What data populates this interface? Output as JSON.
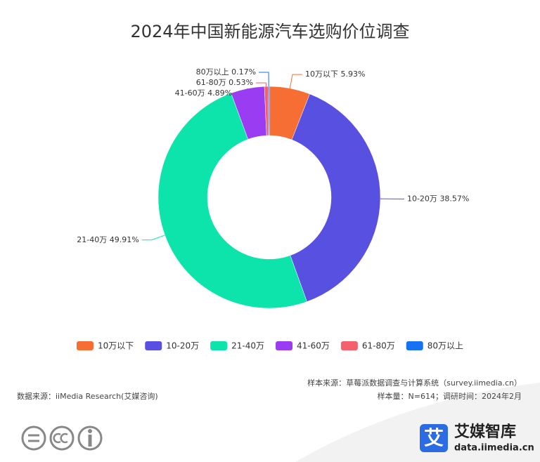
{
  "chart_data": {
    "type": "pie",
    "title": "2024年中国新能源汽车选购价位调查",
    "categories": [
      "10万以下",
      "10-20万",
      "21-40万",
      "41-60万",
      "61-80万",
      "80万以上"
    ],
    "values": [
      5.93,
      38.57,
      49.91,
      4.89,
      0.53,
      0.17
    ],
    "value_labels": [
      "5.93%",
      "38.57%",
      "49.91%",
      "4.89%",
      "0.53%",
      "0.17%"
    ],
    "colors": [
      "#f76e35",
      "#5850e0",
      "#0de4ab",
      "#9a3df2",
      "#f4606c",
      "#1672f2"
    ],
    "legend": "bottom"
  },
  "footer": {
    "sample_source": "样本来源：草莓派数据调查与计算系统（survey.iimedia.cn）",
    "sample_info": "样本量：N=614；调研时间：2024年2月",
    "data_source": "数据来源：iiMedia Research(艾媒咨询)",
    "logo_icon": "艾",
    "logo_name": "艾媒智库",
    "logo_url": "data.iimedia.cn"
  }
}
